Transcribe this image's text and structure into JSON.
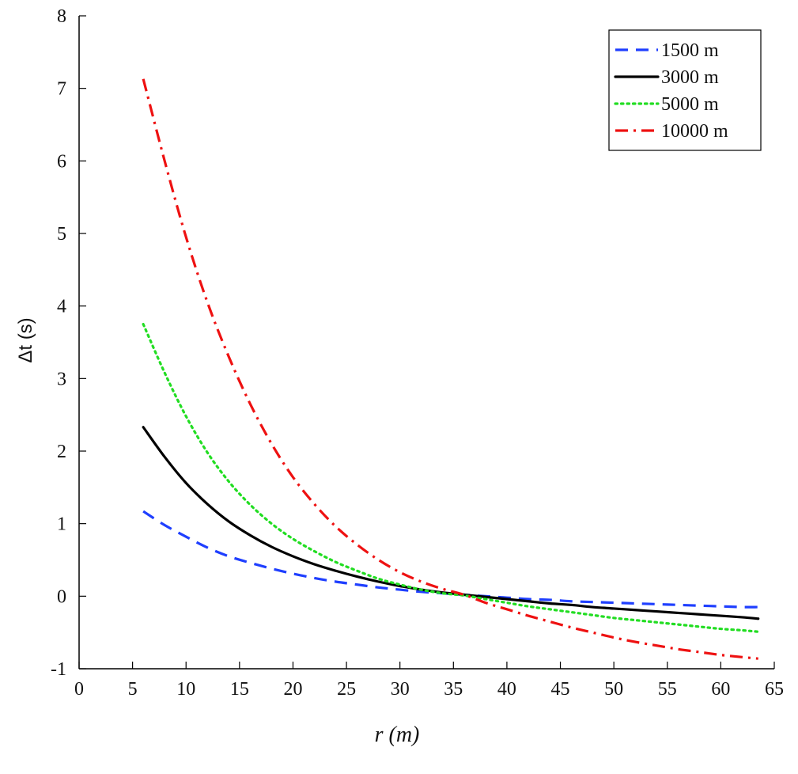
{
  "chart_data": {
    "type": "line",
    "xlabel": "r (m)",
    "ylabel": "Δt (s)",
    "xlim": [
      0,
      65
    ],
    "ylim": [
      -1,
      8
    ],
    "xticks": [
      0,
      5,
      10,
      15,
      20,
      25,
      30,
      35,
      40,
      45,
      50,
      55,
      60,
      65
    ],
    "yticks": [
      -1,
      0,
      1,
      2,
      3,
      4,
      5,
      6,
      7,
      8
    ],
    "grid": false,
    "legend_position": "top-right",
    "x": [
      6,
      8,
      10,
      12,
      14,
      16,
      18,
      20,
      22,
      24,
      26,
      28,
      30,
      32,
      34,
      36,
      38,
      40,
      42,
      44,
      46,
      48,
      50,
      52,
      54,
      56,
      58,
      60,
      62,
      63.5
    ],
    "series": [
      {
        "name": "1500 m",
        "color": "#1f3fff",
        "dash": "dashed",
        "values": [
          1.17,
          0.98,
          0.82,
          0.67,
          0.55,
          0.46,
          0.38,
          0.31,
          0.25,
          0.2,
          0.16,
          0.12,
          0.09,
          0.06,
          0.04,
          0.02,
          0.0,
          -0.02,
          -0.04,
          -0.05,
          -0.07,
          -0.08,
          -0.09,
          -0.1,
          -0.11,
          -0.12,
          -0.13,
          -0.14,
          -0.15,
          -0.15
        ]
      },
      {
        "name": "3000 m",
        "color": "#000000",
        "dash": "solid",
        "values": [
          2.33,
          1.92,
          1.56,
          1.27,
          1.03,
          0.84,
          0.68,
          0.55,
          0.44,
          0.35,
          0.27,
          0.2,
          0.14,
          0.09,
          0.05,
          0.02,
          -0.01,
          -0.04,
          -0.07,
          -0.1,
          -0.12,
          -0.15,
          -0.17,
          -0.19,
          -0.21,
          -0.23,
          -0.25,
          -0.27,
          -0.29,
          -0.31
        ]
      },
      {
        "name": "5000 m",
        "color": "#22dd22",
        "dash": "dotted",
        "values": [
          3.75,
          3.08,
          2.48,
          1.98,
          1.58,
          1.26,
          1.0,
          0.79,
          0.62,
          0.47,
          0.35,
          0.24,
          0.16,
          0.09,
          0.04,
          0.01,
          -0.04,
          -0.09,
          -0.14,
          -0.18,
          -0.22,
          -0.26,
          -0.3,
          -0.33,
          -0.36,
          -0.39,
          -0.42,
          -0.45,
          -0.47,
          -0.49
        ]
      },
      {
        "name": "10000 m",
        "color": "#ee1111",
        "dash": "dashdot",
        "values": [
          7.13,
          6.0,
          4.95,
          4.05,
          3.3,
          2.65,
          2.1,
          1.64,
          1.27,
          0.96,
          0.71,
          0.5,
          0.33,
          0.2,
          0.1,
          0.02,
          -0.09,
          -0.18,
          -0.27,
          -0.35,
          -0.43,
          -0.5,
          -0.57,
          -0.63,
          -0.68,
          -0.73,
          -0.77,
          -0.81,
          -0.84,
          -0.86
        ]
      }
    ]
  }
}
